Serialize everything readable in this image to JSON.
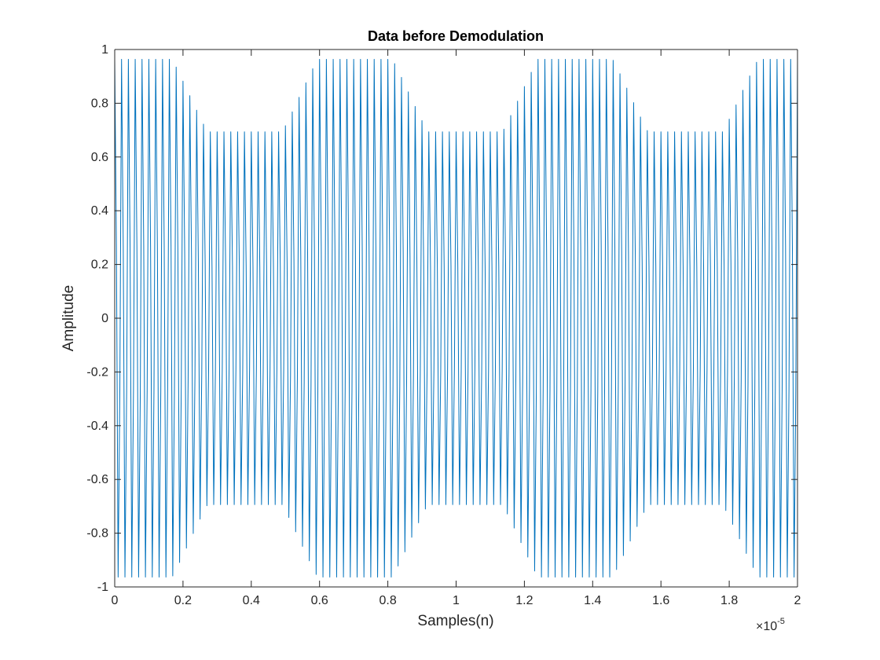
{
  "chart_data": {
    "type": "line",
    "title": "Data before Demodulation",
    "xlabel": "Samples(n)",
    "ylabel": "Amplitude",
    "xlim": [
      0,
      2e-05
    ],
    "ylim": [
      -1,
      1
    ],
    "x_tick_labels": [
      "0",
      "0.2",
      "0.4",
      "0.6",
      "0.8",
      "1",
      "1.2",
      "1.4",
      "1.6",
      "1.8",
      "2"
    ],
    "y_tick_labels": [
      "-1",
      "-0.8",
      "-0.6",
      "-0.4",
      "-0.2",
      "0",
      "0.2",
      "0.4",
      "0.6",
      "0.8",
      "1"
    ],
    "x_exponent_prefix": "×10",
    "x_exponent": "-5",
    "grid": false,
    "series": [
      {
        "color": "#0072BD",
        "samples": 400,
        "signal": {
          "carrier_frequency_hz": 5000000,
          "modulation_frequency_hz": 155000,
          "modulation_phase_rad": 1.0,
          "modulation_index": 0.29,
          "dc_level": 0.86,
          "peak": 1.0,
          "trough": 0.72
        }
      }
    ]
  }
}
